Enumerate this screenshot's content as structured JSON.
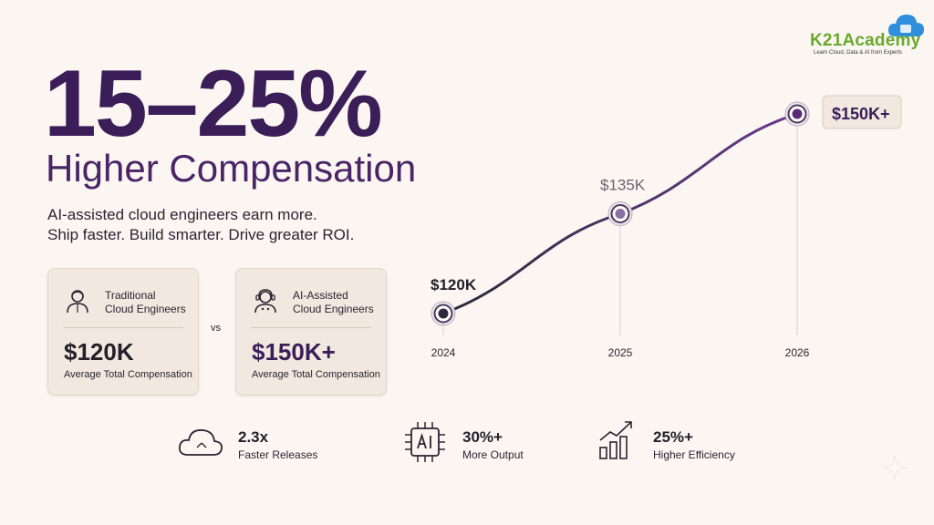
{
  "brand": {
    "name": "K21Academy",
    "tagline": "Learn Cloud, Data & AI from Experts"
  },
  "headline": {
    "percent": "15–25%",
    "subtitle": "Higher Compensation"
  },
  "tagline": {
    "line1": "AI-assisted cloud engineers earn more.",
    "line2": "Ship faster. Build smarter. Drive greater ROI."
  },
  "comparison": {
    "traditional": {
      "title_line1": "Traditional",
      "title_line2": "Cloud Engineers",
      "amount": "$120K",
      "caption": "Average Total Compensation",
      "icon": "engineer-icon"
    },
    "vs": "vs",
    "ai": {
      "title_line1": "AI-Assisted",
      "title_line2": "Cloud Engineers",
      "amount": "$150K+",
      "caption": "Average Total Compensation",
      "icon": "ai-engineer-icon"
    }
  },
  "stats": [
    {
      "value": "2.3x",
      "label": "Faster Releases",
      "icon": "cloud-icon"
    },
    {
      "value": "30%+",
      "label": "More Output",
      "icon": "ai-chip-icon"
    },
    {
      "value": "25%+",
      "label": "Higher Efficiency",
      "icon": "bar-growth-icon"
    }
  ],
  "colors": {
    "primary": "#3b1d57",
    "accent": "#6b3a8f",
    "background": "#fbf6f1",
    "brand_green": "#6aa92c",
    "brand_blue": "#2f8fdc"
  },
  "chart_data": {
    "type": "line",
    "x": [
      "2024",
      "2025",
      "2026"
    ],
    "series": [
      {
        "values": [
          120,
          135,
          150
        ]
      }
    ],
    "point_labels": [
      "$120K",
      "$135K",
      "$150K+"
    ],
    "ylim": [
      110,
      155
    ],
    "grid": false,
    "title": "",
    "xlabel": "",
    "ylabel": ""
  }
}
